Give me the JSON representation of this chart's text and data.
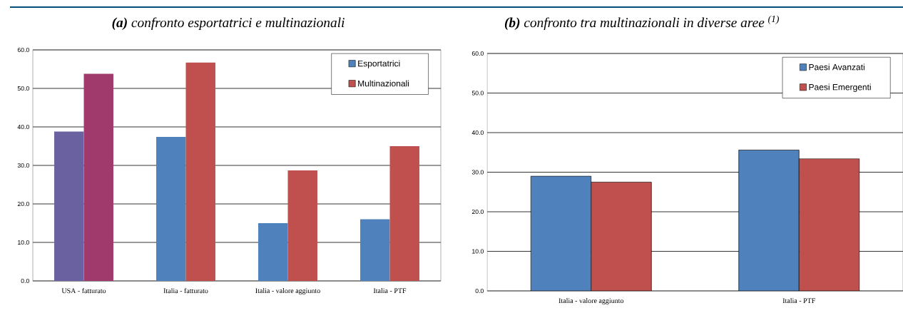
{
  "chart_data": [
    {
      "type": "bar",
      "title": "**(a)** confronto esportatrici e multinazionali",
      "categories": [
        "USA - fatturato",
        "Italia - fatturato",
        "Italia - valore aggiunto",
        "Italia - PTF"
      ],
      "series": [
        {
          "name": "Esportatrici",
          "color": "#4f81bd",
          "colors": [
            "#6a62a0",
            "#4f81bd",
            "#4f81bd",
            "#4f81bd"
          ],
          "values": [
            38.8,
            37.4,
            15.0,
            16.0
          ]
        },
        {
          "name": "Multinazionali",
          "color": "#c0504d",
          "colors": [
            "#a03a6c",
            "#c0504d",
            "#c0504d",
            "#c0504d"
          ],
          "values": [
            53.8,
            56.7,
            28.7,
            35.0
          ]
        }
      ],
      "ylim": [
        0,
        60
      ],
      "yticks": [
        {
          "value": 0,
          "label": "0.0"
        },
        {
          "value": 10,
          "label": "10.0"
        },
        {
          "value": 20,
          "label": "20.0"
        },
        {
          "value": 30,
          "label": "30.0"
        },
        {
          "value": 40,
          "label": "40.0"
        },
        {
          "value": 50,
          "label": "50.0"
        },
        {
          "value": 60,
          "label": "60.0"
        }
      ],
      "grid": "y",
      "legend": "top right"
    },
    {
      "type": "bar",
      "title": "**(b)** confronto tra multinazionali in diverse aree $^{(1)}$",
      "categories": [
        "Italia - valore aggiunto",
        "Italia - PTF"
      ],
      "series": [
        {
          "name": "Paesi Avanzati",
          "color": "#4f81bd",
          "values": [
            29.0,
            35.6
          ]
        },
        {
          "name": "Paesi Emergenti",
          "color": "#c0504d",
          "values": [
            27.5,
            33.4
          ]
        }
      ],
      "ylim": [
        0,
        60
      ],
      "yticks": [
        {
          "value": 0,
          "label": "0.0"
        },
        {
          "value": 10,
          "label": "10.0"
        },
        {
          "value": 20,
          "label": "20.0"
        },
        {
          "value": 30,
          "label": "30.0"
        },
        {
          "value": 40,
          "label": "40.0"
        },
        {
          "value": 50,
          "label": "50.0"
        },
        {
          "value": 60,
          "label": "60.0"
        }
      ],
      "grid": "y",
      "legend": "top right"
    }
  ]
}
